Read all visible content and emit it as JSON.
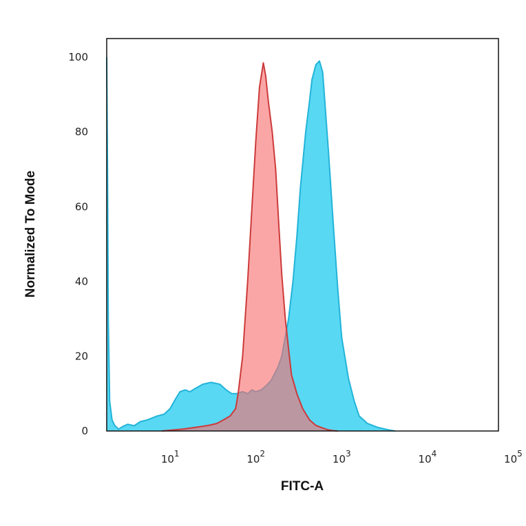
{
  "chart_data": {
    "type": "area",
    "title": "",
    "xlabel": "FITC-A",
    "ylabel": "Normalized To Mode",
    "x_scale": "log",
    "xlim": [
      1.82,
      67300
    ],
    "ylim": [
      0,
      105
    ],
    "grid": false,
    "legend": "none",
    "y_ticks": [
      "0",
      "20",
      "40",
      "60",
      "80",
      "100"
    ],
    "x_ticks": [
      {
        "base": "10",
        "exp": "1",
        "value": 10
      },
      {
        "base": "10",
        "exp": "2",
        "value": 100
      },
      {
        "base": "10",
        "exp": "3",
        "value": 1000
      },
      {
        "base": "10",
        "exp": "4",
        "value": 10000
      },
      {
        "base": "10",
        "exp": "5",
        "value": 100000
      }
    ],
    "series": [
      {
        "color": "#4fd6f2",
        "stroke": "#22b3d8",
        "points": [
          [
            1.82,
            100
          ],
          [
            1.86,
            70
          ],
          [
            1.9,
            30
          ],
          [
            1.97,
            8
          ],
          [
            2.1,
            3
          ],
          [
            2.25,
            1.5
          ],
          [
            2.5,
            0.5
          ],
          [
            2.8,
            1.2
          ],
          [
            3.2,
            1.8
          ],
          [
            3.8,
            1.4
          ],
          [
            4.5,
            2.5
          ],
          [
            5.5,
            3
          ],
          [
            7,
            4
          ],
          [
            8.5,
            4.5
          ],
          [
            10,
            6
          ],
          [
            11.5,
            8.5
          ],
          [
            13,
            10.5
          ],
          [
            15,
            11
          ],
          [
            17,
            10.5
          ],
          [
            20,
            11.5
          ],
          [
            24,
            12.5
          ],
          [
            30,
            13
          ],
          [
            38,
            12.5
          ],
          [
            45,
            11
          ],
          [
            52,
            10
          ],
          [
            60,
            10
          ],
          [
            70,
            10.5
          ],
          [
            80,
            10
          ],
          [
            90,
            11
          ],
          [
            100,
            10.5
          ],
          [
            115,
            11
          ],
          [
            130,
            12
          ],
          [
            150,
            13.5
          ],
          [
            180,
            17
          ],
          [
            200,
            20
          ],
          [
            240,
            30
          ],
          [
            270,
            40
          ],
          [
            300,
            52
          ],
          [
            330,
            65
          ],
          [
            380,
            80
          ],
          [
            420,
            88
          ],
          [
            450,
            94
          ],
          [
            500,
            98
          ],
          [
            550,
            99
          ],
          [
            600,
            96
          ],
          [
            700,
            75
          ],
          [
            800,
            55
          ],
          [
            900,
            38
          ],
          [
            1000,
            25
          ],
          [
            1200,
            14
          ],
          [
            1400,
            8
          ],
          [
            1600,
            4
          ],
          [
            2000,
            2
          ],
          [
            2600,
            1
          ],
          [
            3500,
            0.3
          ],
          [
            4200,
            0
          ]
        ]
      },
      {
        "color": "#f87070",
        "stroke": "#cc3a3a",
        "points": [
          [
            8,
            0
          ],
          [
            10,
            0.2
          ],
          [
            14,
            0.5
          ],
          [
            20,
            1
          ],
          [
            28,
            1.5
          ],
          [
            35,
            2
          ],
          [
            42,
            3
          ],
          [
            50,
            4
          ],
          [
            58,
            6
          ],
          [
            62,
            10
          ],
          [
            70,
            20
          ],
          [
            80,
            40
          ],
          [
            90,
            60
          ],
          [
            100,
            78
          ],
          [
            110,
            92
          ],
          [
            122,
            98.5
          ],
          [
            130,
            95
          ],
          [
            140,
            88
          ],
          [
            155,
            80
          ],
          [
            170,
            70
          ],
          [
            185,
            55
          ],
          [
            200,
            42
          ],
          [
            220,
            30
          ],
          [
            240,
            22
          ],
          [
            260,
            15
          ],
          [
            300,
            10
          ],
          [
            350,
            6
          ],
          [
            420,
            3
          ],
          [
            500,
            1.5
          ],
          [
            600,
            0.8
          ],
          [
            700,
            0.3
          ],
          [
            800,
            0.1
          ],
          [
            900,
            0
          ]
        ]
      }
    ]
  }
}
